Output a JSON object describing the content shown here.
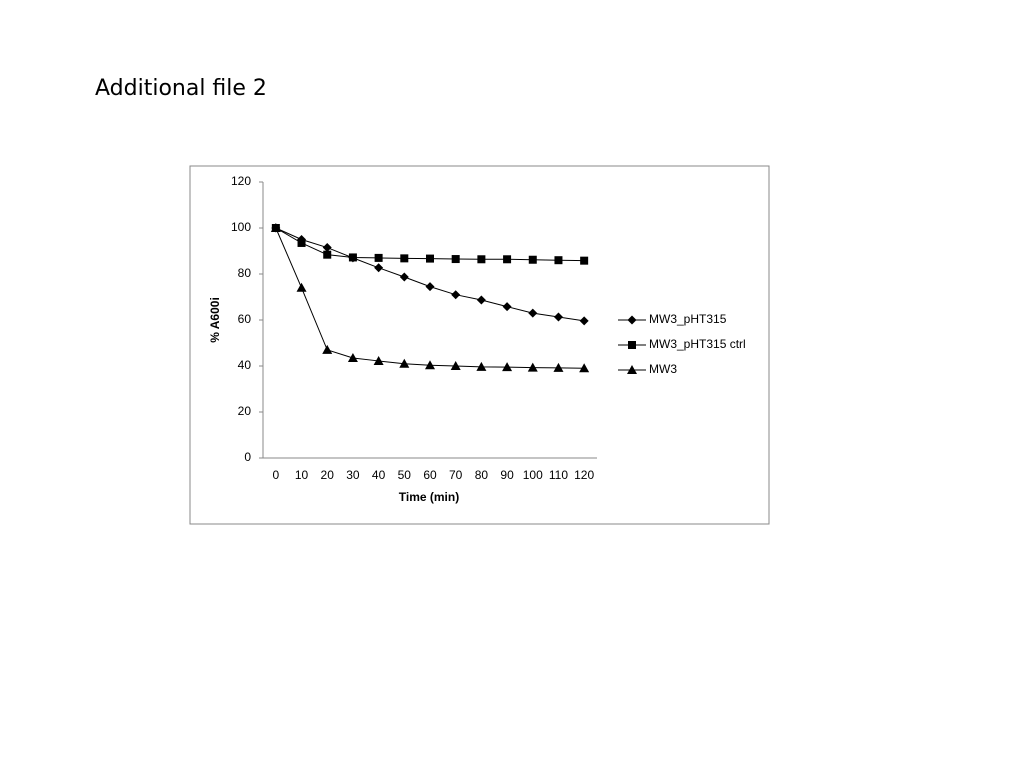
{
  "heading": "Additional file 2",
  "chart_data": {
    "type": "line",
    "x_label": "Time (min)",
    "y_label": "% A600i",
    "categories": [
      0,
      10,
      20,
      30,
      40,
      50,
      60,
      70,
      80,
      90,
      100,
      110,
      120
    ],
    "series": [
      {
        "name": "MW3_pHT315",
        "color": "#000000",
        "marker": "diamond",
        "values": [
          100,
          95,
          91.5,
          87,
          82.7,
          78.7,
          74.5,
          71,
          68.7,
          65.8,
          63,
          61.3,
          59.6
        ]
      },
      {
        "name": "MW3_pHT315 ctrl",
        "color": "#000000",
        "marker": "square",
        "values": [
          100,
          93.5,
          88.4,
          87.2,
          87,
          86.8,
          86.7,
          86.5,
          86.4,
          86.4,
          86.2,
          86,
          85.8
        ]
      },
      {
        "name": "MW3",
        "color": "#000000",
        "marker": "triangle",
        "values": [
          100,
          74,
          47,
          43.5,
          42.2,
          41,
          40.3,
          40,
          39.6,
          39.5,
          39.3,
          39.2,
          39
        ]
      }
    ],
    "ylim": [
      0,
      120
    ],
    "yticks": [
      0,
      20,
      40,
      60,
      80,
      100,
      120
    ],
    "grid": false,
    "legend": "right"
  }
}
